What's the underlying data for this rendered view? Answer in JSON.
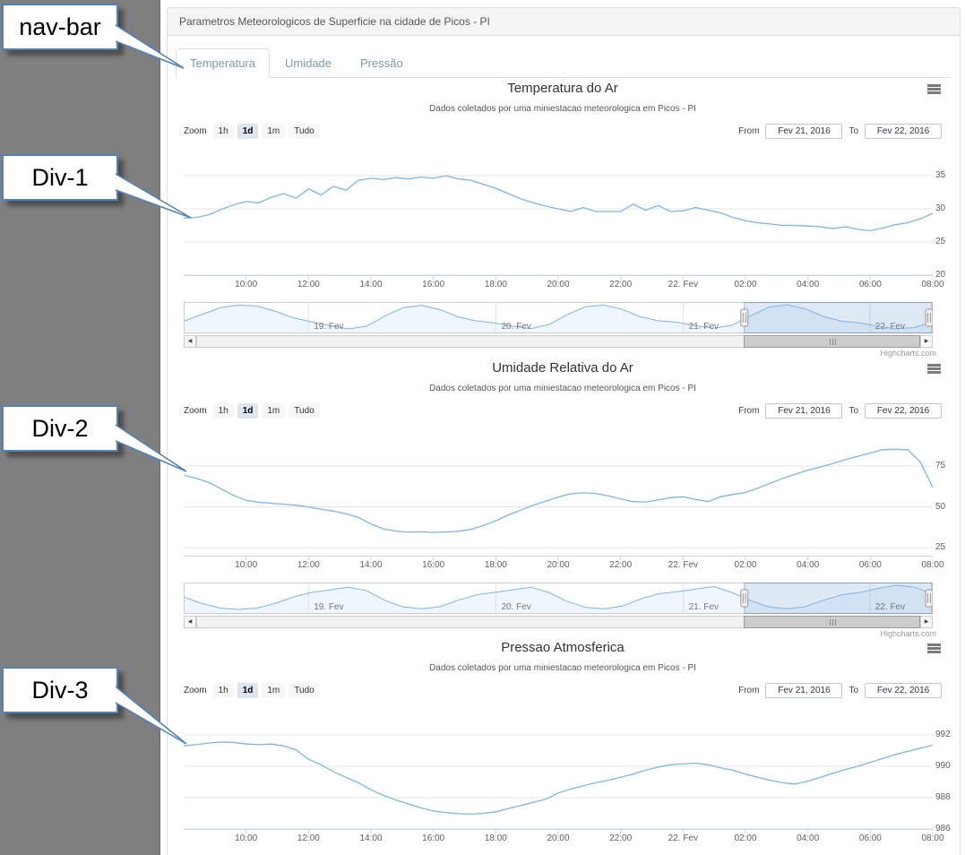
{
  "page": {
    "heading": "Parametros Meteorologicos de Superficie na cidade de Picos - PI",
    "tabs": [
      {
        "label": "Temperatura",
        "active": true
      },
      {
        "label": "Umidade",
        "active": false
      },
      {
        "label": "Pressão",
        "active": false
      }
    ],
    "credits": "Highcharts.com"
  },
  "annotations": {
    "navbar_label": "nav-bar",
    "div1_label": "Div-1",
    "div2_label": "Div-2",
    "div3_label": "Div-3"
  },
  "range_selector": {
    "zoom_label": "Zoom",
    "buttons": [
      "1h",
      "1d",
      "1m",
      "Tudo"
    ],
    "selected": "1d",
    "from_label": "From",
    "from_value": "Fev 21, 2016",
    "to_label": "To",
    "to_value": "Fev 22, 2016"
  },
  "colors": {
    "line": "#7cb5ec",
    "grid": "#e6e6e6",
    "axis": "#ccd6eb",
    "mask_fill": "rgba(135,175,220,0.28)",
    "mask_stroke": "rgba(80,120,175,0.5)"
  },
  "chart_data": [
    {
      "type": "line",
      "title": "Temperatura do Ar",
      "subtitle": "Dados coletados por uma miniestacao meteorologica em Picos - PI",
      "x_labels": [
        "10:00",
        "12:00",
        "14:00",
        "16:00",
        "18:00",
        "20:00",
        "22:00",
        "22. Fev",
        "02:00",
        "04:00",
        "06:00",
        "08:00"
      ],
      "yticks": [
        35,
        30,
        25,
        20
      ],
      "ylim": [
        20,
        35
      ],
      "values": [
        28.6,
        28.7,
        29.1,
        29.9,
        30.6,
        31.1,
        30.9,
        31.7,
        32.3,
        31.6,
        33.0,
        32.1,
        33.4,
        32.8,
        34.3,
        34.6,
        34.4,
        34.7,
        34.5,
        34.8,
        34.6,
        35.0,
        34.5,
        34.3,
        33.7,
        33.1,
        32.3,
        31.5,
        30.9,
        30.4,
        30.0,
        29.6,
        30.2,
        29.6,
        29.6,
        29.6,
        30.7,
        29.8,
        30.5,
        29.6,
        29.7,
        30.2,
        29.8,
        29.4,
        28.7,
        28.2,
        27.9,
        27.7,
        27.5,
        27.5,
        27.4,
        27.3,
        27.0,
        27.3,
        26.9,
        26.7,
        27.1,
        27.6,
        27.9,
        28.5,
        29.3
      ],
      "navigator": {
        "day_labels": [
          "19. Fev",
          "20. Fev",
          "21. Fev",
          "22. Fev"
        ],
        "values": [
          29.5,
          31.5,
          33.5,
          34.3,
          34.0,
          32.5,
          30.5,
          29.3,
          28.2,
          27.2,
          28.0,
          31.0,
          33.5,
          34.2,
          33.0,
          30.8,
          29.6,
          29.0,
          28.0,
          27.3,
          28.5,
          31.5,
          33.8,
          34.3,
          33.0,
          30.8,
          29.6,
          29.2,
          28.2,
          27.4,
          28.3,
          31.0,
          33.6,
          34.4,
          33.2,
          30.9,
          29.5,
          29.0,
          28.0,
          27.2,
          27.6,
          29.3
        ],
        "selected_range": [
          0.7485,
          1.0
        ]
      }
    },
    {
      "type": "line",
      "title": "Umidade Relativa do Ar",
      "subtitle": "Dados coletados por uma miniestacao meteorologica em Picos - PI",
      "x_labels": [
        "10:00",
        "12:00",
        "14:00",
        "16:00",
        "18:00",
        "20:00",
        "22:00",
        "22. Fev",
        "02:00",
        "04:00",
        "06:00",
        "08:00"
      ],
      "yticks": [
        75,
        50,
        25
      ],
      "ylim": [
        25,
        100
      ],
      "values": [
        69.5,
        67.5,
        65,
        61,
        57,
        54,
        52.8,
        52.2,
        51.6,
        51,
        49.8,
        48.6,
        47.4,
        45.8,
        43.5,
        39.5,
        36.5,
        35.2,
        34.4,
        34.7,
        34.3,
        34.6,
        35,
        36.2,
        38.5,
        41.5,
        45,
        48,
        51,
        53.5,
        56,
        58,
        58.6,
        58.2,
        56.8,
        54.8,
        53.2,
        53,
        54.2,
        55.6,
        56.2,
        54.6,
        53.2,
        56.2,
        57.6,
        58.8,
        61.5,
        64.5,
        67.5,
        70,
        72.5,
        74.5,
        76.5,
        79,
        81,
        83,
        85,
        85.3,
        85,
        77.5,
        62
      ],
      "navigator": {
        "day_labels": [
          "19. Fev",
          "20. Fev",
          "21. Fev",
          "22. Fev"
        ],
        "values": [
          55,
          45,
          38,
          36,
          38,
          45,
          55,
          62,
          66,
          70,
          65,
          50,
          40,
          37,
          40,
          50,
          58,
          62,
          66,
          70,
          62,
          48,
          39,
          37,
          41,
          52,
          60,
          63,
          67,
          71,
          62,
          50,
          40,
          37,
          40,
          50,
          58,
          62,
          68,
          73,
          70,
          60
        ],
        "selected_range": [
          0.7485,
          1.0
        ]
      }
    },
    {
      "type": "line",
      "title": "Pressao Atmosferica",
      "subtitle": "Dados coletados por uma miniestacao meteorologica em Picos - PI",
      "x_labels": [
        "10:00",
        "12:00",
        "14:00",
        "16:00",
        "18:00",
        "20:00",
        "22:00",
        "22. Fev",
        "02:00",
        "04:00",
        "06:00",
        "08:00"
      ],
      "yticks": [
        992,
        990,
        988,
        986
      ],
      "ylim": [
        986,
        992
      ],
      "values": [
        991.3,
        991.38,
        991.48,
        991.55,
        991.52,
        991.42,
        991.38,
        991.42,
        991.3,
        991.05,
        990.45,
        990.1,
        989.65,
        989.3,
        988.95,
        988.5,
        988.15,
        987.85,
        987.6,
        987.35,
        987.15,
        987.05,
        986.98,
        986.95,
        987.0,
        987.1,
        987.3,
        987.5,
        987.7,
        987.9,
        988.3,
        988.55,
        988.75,
        988.95,
        989.1,
        989.3,
        989.5,
        989.75,
        989.95,
        990.1,
        990.15,
        990.2,
        990.1,
        989.9,
        989.75,
        989.5,
        989.3,
        989.1,
        988.95,
        988.87,
        989.05,
        989.3,
        989.55,
        989.8,
        990.0,
        990.25,
        990.5,
        990.75,
        990.95,
        991.15,
        991.35
      ]
    }
  ]
}
